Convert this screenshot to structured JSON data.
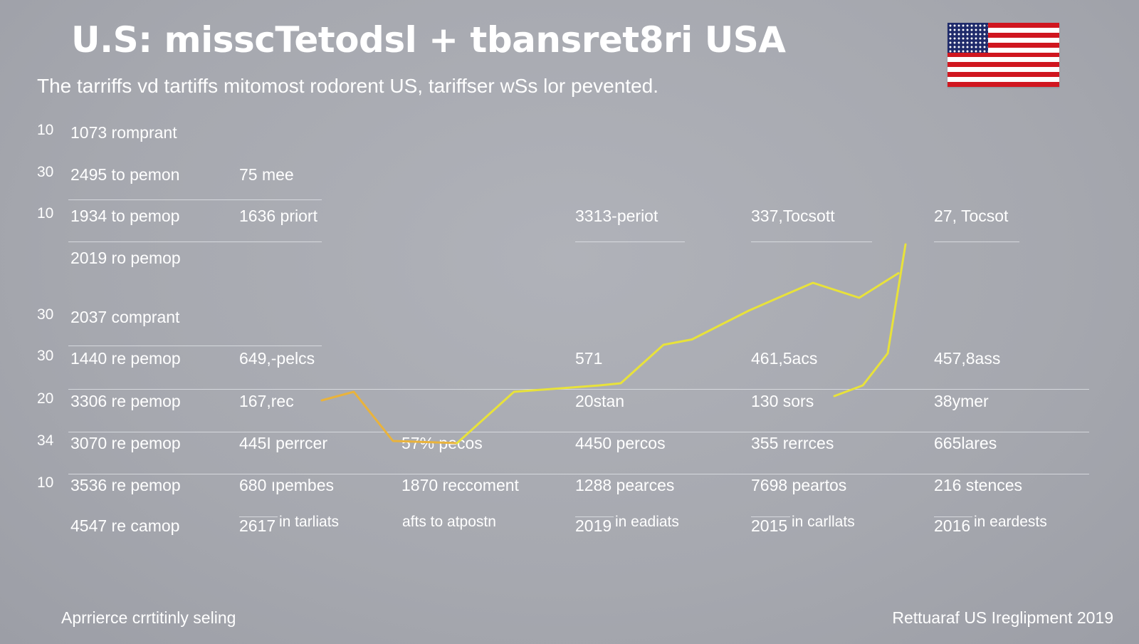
{
  "title": "U.S: misscTetodsl + tbansret8ri USA",
  "subtitle": "The tarriffs vd tartiffs mitomost rodorent US, tariffser wSs lor pevented.",
  "flag_colors": {
    "red": "#d0161f",
    "white": "#ffffff",
    "blue": "#1f2b6b"
  },
  "colors": {
    "line_yellow": "#e8e23a",
    "line_orange": "#e9b33c",
    "text": "#ffffff"
  },
  "table": {
    "rows": [
      {
        "idx": "10",
        "cells": [
          "1073 romprant"
        ]
      },
      {
        "idx": "30",
        "cells": [
          "2495 to pemon",
          "75 mee"
        ]
      },
      {
        "idx": "10",
        "cells": [
          "1934 to pemop",
          "1636 priort",
          "",
          "3313-periot",
          "337,Tocsott",
          "27,  Tocsot"
        ]
      },
      {
        "idx": "",
        "cells": [
          "2019 ro pemop"
        ]
      },
      {
        "idx": "30",
        "cells": [
          "2037 comprant"
        ]
      },
      {
        "idx": "30",
        "cells": [
          "1440 re pemop",
          "649,-pelcs",
          "",
          "571",
          "461,5acs",
          "457,8ass"
        ]
      },
      {
        "idx": "20",
        "cells": [
          "3306 re pemop",
          "167,rec",
          "",
          "20stan",
          "130 sors",
          "38ymer"
        ]
      },
      {
        "idx": "34",
        "cells": [
          "3070 re pemop",
          "445I perrcer",
          "57% pecos",
          "4450 percos",
          "355 rerrces",
          "665lares"
        ]
      },
      {
        "idx": "10",
        "cells": [
          "3536 re pemop",
          "680 ıpembes",
          "1870 reccoment",
          "1288 pearces",
          "7698 peartos",
          "216 stences"
        ]
      },
      {
        "idx": "",
        "cells": [
          "4547 re camop",
          "2617",
          "",
          "2019",
          "2015",
          "2016"
        ]
      }
    ],
    "sub_notes": [
      "in tarliats",
      "afts to atpostn",
      "in eadiats",
      "in carllats",
      "in eardests"
    ]
  },
  "chart_data": {
    "type": "line",
    "title": "",
    "xlabel": "",
    "ylabel": "",
    "series": [
      {
        "color": "#e9b33c",
        "x": [
          0,
          0.9,
          2.0,
          3.8
        ],
        "y": [
          56,
          64,
          18,
          16
        ]
      },
      {
        "color": "#e8e23a",
        "x": [
          3.8,
          5.4,
          7.8,
          8.4,
          9.6,
          10.4,
          12.0,
          13.1,
          13.8,
          15.1,
          16.2
        ],
        "y": [
          16,
          64,
          70,
          72,
          108,
          113,
          140,
          156,
          166,
          152,
          175
        ]
      },
      {
        "color": "#e8e23a",
        "x": [
          14.4,
          15.2,
          15.9,
          16.4
        ],
        "y": [
          60,
          70,
          100,
          202
        ]
      }
    ]
  },
  "footer": {
    "left": "Aprrierce crrtitinly seling",
    "right": "Rettuaraf US Ireglipment 2019"
  }
}
